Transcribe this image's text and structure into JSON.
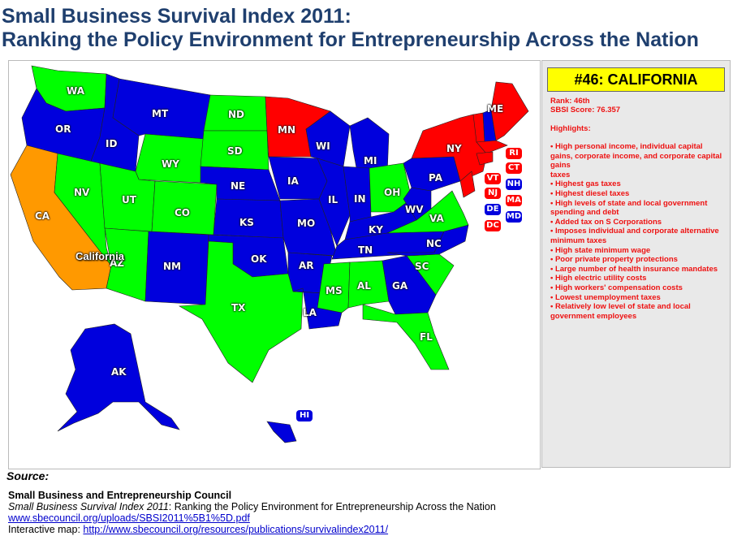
{
  "header": {
    "title_line1": "Small Business Survival Index 2011:",
    "title_line2": "Ranking the Policy Environment for Entrepreneurship Across the Nation"
  },
  "colors": {
    "red": "#ff0000",
    "blue": "#0000dd",
    "green": "#00ff00",
    "orange": "#ff9900",
    "title": "#1f3f6e",
    "panel_text": "#e11111",
    "highlight_box": "#ffff00"
  },
  "map": {
    "callout": "California",
    "states": [
      {
        "code": "WA",
        "color": "green"
      },
      {
        "code": "OR",
        "color": "blue"
      },
      {
        "code": "CA",
        "color": "orange"
      },
      {
        "code": "ID",
        "color": "blue"
      },
      {
        "code": "NV",
        "color": "green"
      },
      {
        "code": "MT",
        "color": "blue"
      },
      {
        "code": "WY",
        "color": "green"
      },
      {
        "code": "UT",
        "color": "green"
      },
      {
        "code": "AZ",
        "color": "green"
      },
      {
        "code": "CO",
        "color": "green"
      },
      {
        "code": "NM",
        "color": "blue"
      },
      {
        "code": "ND",
        "color": "green"
      },
      {
        "code": "SD",
        "color": "green"
      },
      {
        "code": "NE",
        "color": "blue"
      },
      {
        "code": "KS",
        "color": "blue"
      },
      {
        "code": "OK",
        "color": "blue"
      },
      {
        "code": "TX",
        "color": "green"
      },
      {
        "code": "MN",
        "color": "red"
      },
      {
        "code": "IA",
        "color": "blue"
      },
      {
        "code": "MO",
        "color": "blue"
      },
      {
        "code": "AR",
        "color": "blue"
      },
      {
        "code": "LA",
        "color": "blue"
      },
      {
        "code": "WI",
        "color": "blue"
      },
      {
        "code": "IL",
        "color": "blue"
      },
      {
        "code": "MI",
        "color": "blue"
      },
      {
        "code": "IN",
        "color": "blue"
      },
      {
        "code": "OH",
        "color": "green"
      },
      {
        "code": "KY",
        "color": "blue"
      },
      {
        "code": "TN",
        "color": "blue"
      },
      {
        "code": "MS",
        "color": "green"
      },
      {
        "code": "AL",
        "color": "green"
      },
      {
        "code": "GA",
        "color": "blue"
      },
      {
        "code": "FL",
        "color": "green"
      },
      {
        "code": "SC",
        "color": "green"
      },
      {
        "code": "NC",
        "color": "blue"
      },
      {
        "code": "VA",
        "color": "green"
      },
      {
        "code": "WV",
        "color": "blue"
      },
      {
        "code": "PA",
        "color": "blue"
      },
      {
        "code": "NY",
        "color": "red"
      },
      {
        "code": "ME",
        "color": "red"
      },
      {
        "code": "AK",
        "color": "blue"
      },
      {
        "code": "HI",
        "color": "blue"
      }
    ],
    "small_state_tags": [
      {
        "code": "RI",
        "color": "red"
      },
      {
        "code": "CT",
        "color": "red"
      },
      {
        "code": "VT",
        "color": "red"
      },
      {
        "code": "NH",
        "color": "blue"
      },
      {
        "code": "NJ",
        "color": "red"
      },
      {
        "code": "MA",
        "color": "red"
      },
      {
        "code": "DE",
        "color": "blue"
      },
      {
        "code": "MD",
        "color": "blue"
      },
      {
        "code": "DC",
        "color": "red"
      }
    ]
  },
  "panel": {
    "title": "#46: CALIFORNIA",
    "rank": "Rank: 46th",
    "score": "SBSI Score: 76.357",
    "highlights_label": "Highlights:",
    "highlights": [
      "• High personal income, individual capital gains, corporate income, and corporate capital gains",
      "taxes",
      "• Highest gas taxes",
      "• Highest diesel taxes",
      "• High levels of state and local government spending and debt",
      "• Added tax on S Corporations",
      "• Imposes individual and corporate alternative minimum taxes",
      "• High state minimum wage",
      "• Poor private property protections",
      "• Large number of health insurance mandates",
      "• High electric utility costs",
      "• High workers' compensation costs",
      "• Lowest unemployment taxes",
      "• Relatively low level of state and local government employees"
    ]
  },
  "source": {
    "heading": "Source:",
    "org": "Small Business and Entrepreneurship Council",
    "pub_title": "Small Business Survival Index 2011",
    "pub_rest": ": Ranking the Policy Environment for Entrepreneurship Across the Nation",
    "pdf_url": "www.sbecouncil.org/uploads/SBSI2011%5B1%5D.pdf",
    "map_label": "Interactive map: ",
    "map_url": "http://www.sbecouncil.org/resources/publications/survivalindex2011/"
  }
}
